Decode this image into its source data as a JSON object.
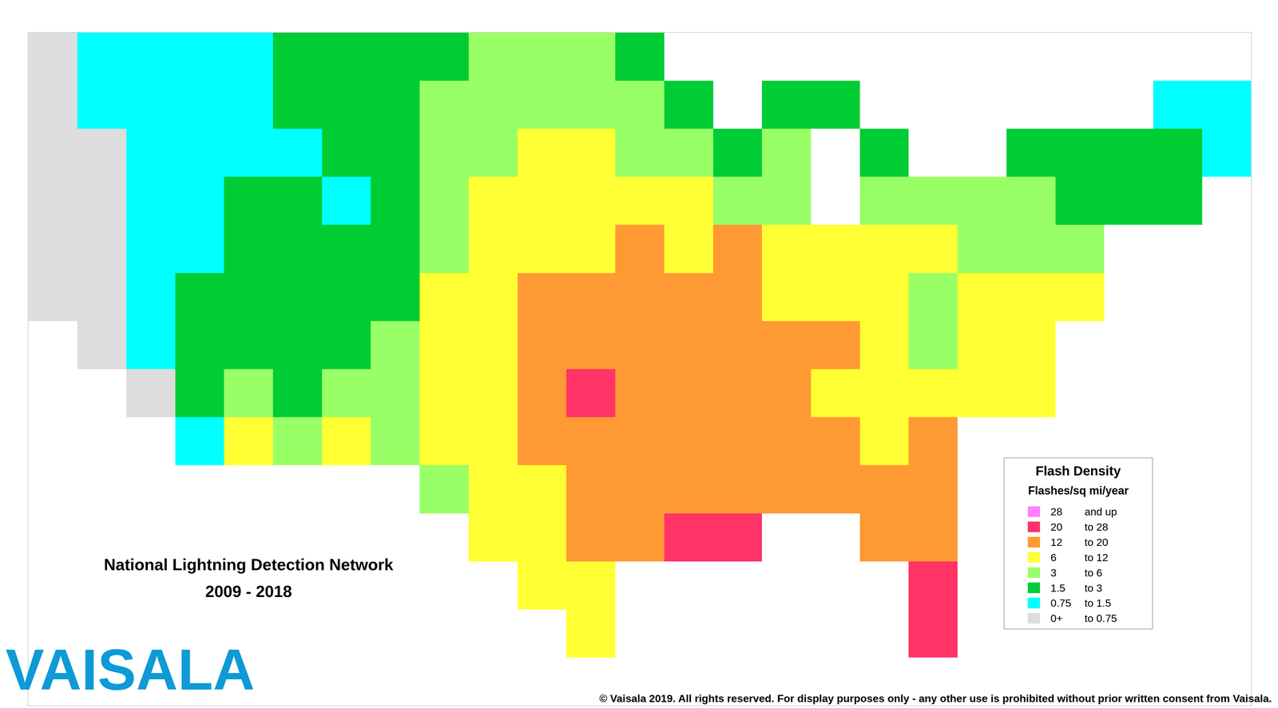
{
  "chart_data": {
    "type": "heatmap",
    "title": "National Lightning Detection Network",
    "subtitle": "2009 - 2018",
    "xlim": [
      -0.5,
      24.5
    ],
    "ylim": [
      13.5,
      -0.5
    ],
    "tick_labels": false,
    "cells": [
      [
        0.4,
        1,
        1,
        1,
        1,
        2.2,
        2.2,
        2.2,
        2.2,
        4.5,
        4.5,
        4.5,
        2.2,
        null,
        null,
        null,
        null,
        null,
        null,
        null,
        null,
        null,
        null,
        null,
        null
      ],
      [
        0.4,
        1,
        1,
        1,
        1,
        2.2,
        2.2,
        2.2,
        4.5,
        4.5,
        4.5,
        4.5,
        4.5,
        2.2,
        null,
        2.2,
        2.2,
        null,
        null,
        null,
        null,
        null,
        null,
        1,
        1
      ],
      [
        0.4,
        0.4,
        1,
        1,
        1,
        1,
        2.2,
        2.2,
        4.5,
        4.5,
        9,
        9,
        4.5,
        4.5,
        2.2,
        4.5,
        null,
        2.2,
        null,
        null,
        2.2,
        2.2,
        2.2,
        2.2,
        1
      ],
      [
        0.4,
        0.4,
        1,
        1,
        2.2,
        2.2,
        1,
        2.2,
        4.5,
        9,
        9,
        9,
        9,
        9,
        4.5,
        4.5,
        null,
        4.5,
        4.5,
        4.5,
        4.5,
        2.2,
        2.2,
        2.2,
        null
      ],
      [
        0.4,
        0.4,
        1,
        1,
        2.2,
        2.2,
        2.2,
        2.2,
        4.5,
        9,
        9,
        9,
        16,
        9,
        16,
        9,
        9,
        9,
        9,
        4.5,
        4.5,
        4.5,
        null,
        null,
        null
      ],
      [
        0.4,
        0.4,
        1,
        2.2,
        2.2,
        2.2,
        2.2,
        2.2,
        9,
        9,
        16,
        16,
        16,
        16,
        16,
        9,
        9,
        9,
        4.5,
        9,
        9,
        9,
        null,
        null,
        null
      ],
      [
        null,
        0.4,
        1,
        2.2,
        2.2,
        2.2,
        2.2,
        4.5,
        9,
        9,
        16,
        16,
        16,
        16,
        16,
        16,
        16,
        9,
        4.5,
        9,
        9,
        null,
        null,
        null,
        null
      ],
      [
        null,
        null,
        0.4,
        2.2,
        4.5,
        2.2,
        4.5,
        4.5,
        9,
        9,
        16,
        24,
        16,
        16,
        16,
        16,
        9,
        9,
        9,
        9,
        9,
        null,
        null,
        null,
        null
      ],
      [
        null,
        null,
        null,
        1,
        9,
        4.5,
        9,
        4.5,
        9,
        9,
        16,
        16,
        16,
        16,
        16,
        16,
        16,
        9,
        16,
        null,
        null,
        null,
        null,
        null,
        null
      ],
      [
        null,
        null,
        null,
        null,
        null,
        null,
        null,
        null,
        4.5,
        9,
        9,
        16,
        16,
        16,
        16,
        16,
        16,
        16,
        16,
        null,
        null,
        null,
        null,
        null,
        null
      ],
      [
        null,
        null,
        null,
        null,
        null,
        null,
        null,
        null,
        null,
        9,
        9,
        16,
        16,
        24,
        24,
        null,
        null,
        16,
        16,
        null,
        null,
        null,
        null,
        null,
        null
      ],
      [
        null,
        null,
        null,
        null,
        null,
        null,
        null,
        null,
        null,
        null,
        9,
        9,
        null,
        null,
        null,
        null,
        null,
        null,
        24,
        null,
        null,
        null,
        null,
        null,
        null
      ],
      [
        null,
        null,
        null,
        null,
        null,
        null,
        null,
        null,
        null,
        null,
        null,
        9,
        null,
        null,
        null,
        null,
        null,
        null,
        24,
        null,
        null,
        null,
        null,
        null,
        null
      ],
      [
        null,
        null,
        null,
        null,
        null,
        null,
        null,
        null,
        null,
        null,
        null,
        null,
        null,
        null,
        null,
        null,
        null,
        null,
        null,
        null,
        null,
        null,
        null,
        null,
        null
      ]
    ],
    "colorbar": {
      "title": "Flash Density",
      "subtitle": "Flashes/sq mi/year",
      "bins": [
        {
          "from": 28,
          "to": null,
          "from_label": "28",
          "to_label": "and up",
          "color": "#ff80ff"
        },
        {
          "from": 20,
          "to": 28,
          "from_label": "20",
          "to_label": "to 28",
          "color": "#ff3366"
        },
        {
          "from": 12,
          "to": 20,
          "from_label": "12",
          "to_label": "to 20",
          "color": "#ff9933"
        },
        {
          "from": 6,
          "to": 12,
          "from_label": "6",
          "to_label": "to 12",
          "color": "#ffff33"
        },
        {
          "from": 3,
          "to": 6,
          "from_label": "3",
          "to_label": "to 6",
          "color": "#99ff66"
        },
        {
          "from": 1.5,
          "to": 3,
          "from_label": "1.5",
          "to_label": "to 3",
          "color": "#00cc33"
        },
        {
          "from": 0.75,
          "to": 1.5,
          "from_label": "0.75",
          "to_label": "to 1.5",
          "color": "#00ffff"
        },
        {
          "from": 0,
          "to": 0.75,
          "from_label": "0+",
          "to_label": "to 0.75",
          "color": "#dddddd"
        }
      ]
    }
  },
  "logo": "VAISALA",
  "copyright": "© Vaisala 2019. All rights reserved. For display purposes only - any other use is prohibited without prior written consent from Vaisala."
}
